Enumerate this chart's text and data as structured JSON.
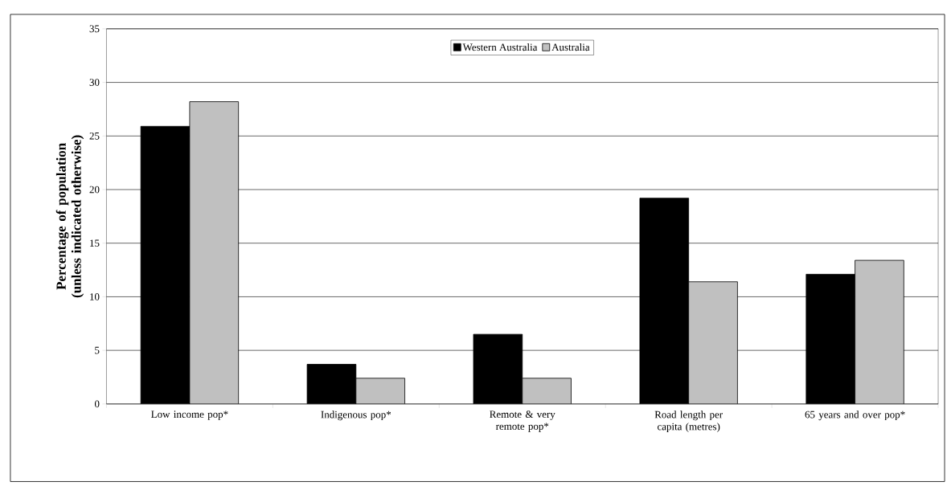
{
  "chart_data": {
    "type": "bar",
    "ylabel": "Percentage of population (unless indicated otherwise)",
    "categories": [
      "Low income pop*",
      "Indigenous pop*",
      "Remote & very remote pop*",
      "Road length per capita (metres)",
      "65 years and over pop*"
    ],
    "series": [
      {
        "name": "Western Australia",
        "color": "#000000",
        "values": [
          25.9,
          3.7,
          6.5,
          19.2,
          12.1
        ]
      },
      {
        "name": "Australia",
        "color": "#c0c0c0",
        "values": [
          28.2,
          2.4,
          2.4,
          11.4,
          13.4
        ]
      }
    ],
    "ylim": [
      0,
      35
    ],
    "yticks": [
      0,
      5,
      10,
      15,
      20,
      25,
      30,
      35
    ],
    "grid": "y",
    "legend": "top"
  }
}
